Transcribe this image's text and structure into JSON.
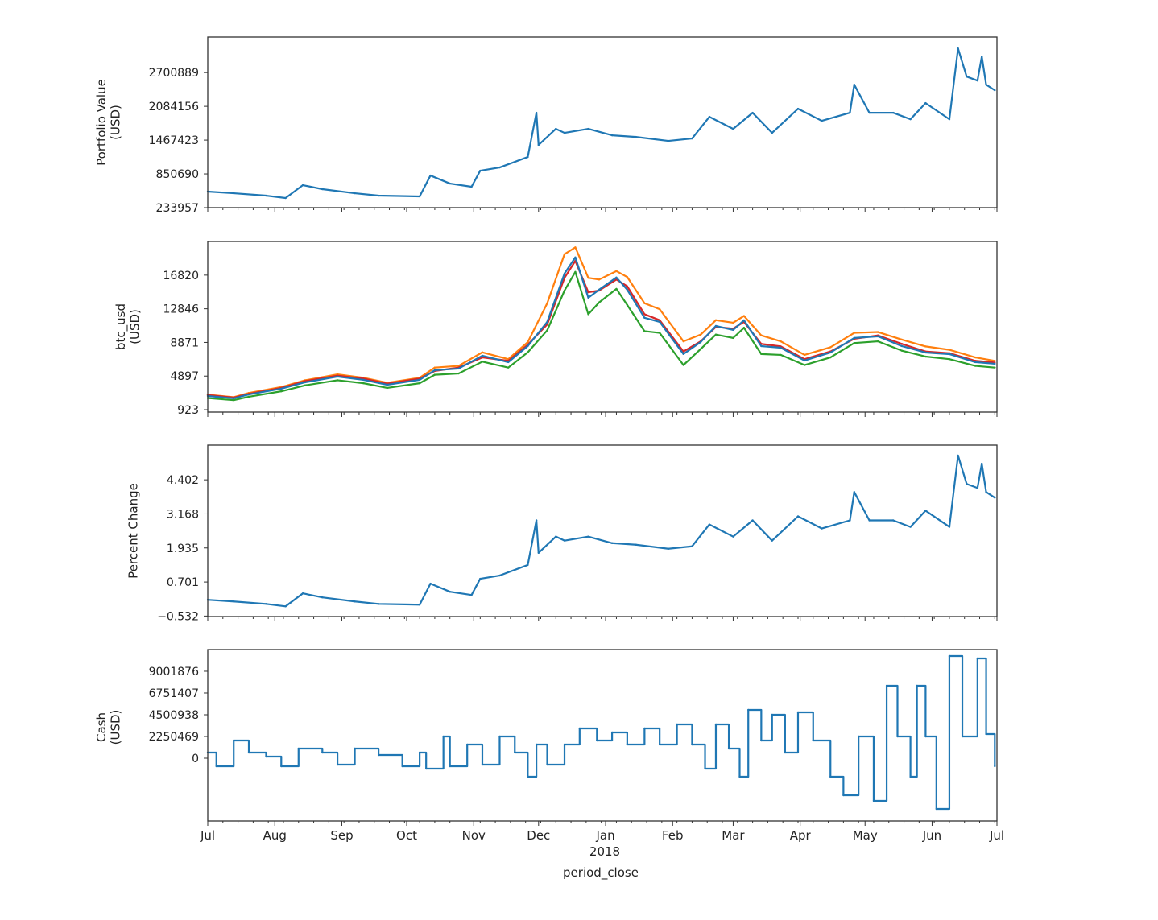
{
  "chart_data": [
    {
      "type": "line",
      "ylabel": "Portfolio Value\n(USD)",
      "ylim": [
        233957,
        3350000
      ],
      "yticks": [
        "233957",
        "850690",
        "1467423",
        "2084156",
        "2700889"
      ],
      "ytick_values": [
        233957,
        850690,
        1467423,
        2084156,
        2700889
      ],
      "color": "#1f77b4",
      "x": [
        "2017-07-01",
        "2017-07-13",
        "2017-07-28",
        "2017-08-06",
        "2017-08-14",
        "2017-08-23",
        "2017-09-07",
        "2017-09-18",
        "2017-10-07",
        "2017-10-12",
        "2017-10-21",
        "2017-10-31",
        "2017-11-04",
        "2017-11-13",
        "2017-11-26",
        "2017-11-30",
        "2017-12-01",
        "2017-12-09",
        "2017-12-13",
        "2017-12-24",
        "2018-01-04",
        "2018-01-15",
        "2018-01-30",
        "2018-02-10",
        "2018-02-18",
        "2018-03-01",
        "2018-03-10",
        "2018-03-19",
        "2018-03-31",
        "2018-04-11",
        "2018-04-24",
        "2018-04-26",
        "2018-05-03",
        "2018-05-14",
        "2018-05-22",
        "2018-05-29",
        "2018-06-09",
        "2018-06-13",
        "2018-06-17",
        "2018-06-22",
        "2018-06-24",
        "2018-06-26",
        "2018-06-30"
      ],
      "values": [
        528000,
        498000,
        454000,
        410000,
        645000,
        572000,
        498000,
        454000,
        440000,
        821000,
        674000,
        616000,
        909000,
        968000,
        1159000,
        1967000,
        1379000,
        1673000,
        1600000,
        1673000,
        1555000,
        1526000,
        1453000,
        1497000,
        1893000,
        1673000,
        1967000,
        1600000,
        2040000,
        1820000,
        1967000,
        2480000,
        1967000,
        1967000,
        1849000,
        2143000,
        1849000,
        3141000,
        2627000,
        2554000,
        2994000,
        2480000,
        2378000
      ]
    },
    {
      "type": "line",
      "ylabel": "btc_usd\n(USD)",
      "ylim": [
        640,
        20800
      ],
      "yticks": [
        "923",
        "4897",
        "8871",
        "12846",
        "16820"
      ],
      "ytick_values": [
        923,
        4897,
        8871,
        12846,
        16820
      ],
      "x": [
        "2017-07-01",
        "2017-07-13",
        "2017-07-20",
        "2017-08-04",
        "2017-08-15",
        "2017-08-30",
        "2017-09-11",
        "2017-09-22",
        "2017-10-07",
        "2017-10-14",
        "2017-10-25",
        "2017-11-05",
        "2017-11-17",
        "2017-11-26",
        "2017-12-05",
        "2017-12-13",
        "2017-12-18",
        "2017-12-24",
        "2017-12-29",
        "2018-01-06",
        "2018-01-11",
        "2018-01-19",
        "2018-01-26",
        "2018-02-06",
        "2018-02-14",
        "2018-02-21",
        "2018-03-01",
        "2018-03-06",
        "2018-03-14",
        "2018-03-23",
        "2018-04-03",
        "2018-04-15",
        "2018-04-26",
        "2018-05-07",
        "2018-05-18",
        "2018-05-29",
        "2018-06-09",
        "2018-06-21",
        "2018-06-30"
      ],
      "series": [
        {
          "color": "#ff7f0e",
          "values": [
            2700,
            2400,
            2900,
            3600,
            4400,
            5100,
            4700,
            4100,
            4700,
            5900,
            6100,
            7700,
            6900,
            8900,
            13500,
            19300,
            20100,
            16500,
            16300,
            17300,
            16600,
            13500,
            12800,
            9000,
            9800,
            11500,
            11200,
            12000,
            9700,
            9000,
            7400,
            8300,
            10000,
            10100,
            9200,
            8400,
            8000,
            7100,
            6700
          ]
        },
        {
          "color": "#d62728",
          "values": [
            2650,
            2350,
            2800,
            3500,
            4300,
            4950,
            4600,
            4000,
            4600,
            5500,
            5900,
            7100,
            6700,
            8600,
            11000,
            16500,
            18500,
            14800,
            15000,
            16300,
            15500,
            12200,
            11500,
            7800,
            9000,
            10700,
            10500,
            11300,
            8700,
            8400,
            6900,
            7800,
            9300,
            9700,
            8700,
            7800,
            7600,
            6700,
            6500
          ]
        },
        {
          "color": "#2ca02c",
          "values": [
            2300,
            2050,
            2450,
            3100,
            3800,
            4400,
            4050,
            3500,
            4050,
            5050,
            5200,
            6600,
            5900,
            7700,
            10300,
            15000,
            17200,
            12200,
            13600,
            15200,
            13300,
            10200,
            10000,
            6200,
            8100,
            9800,
            9400,
            10600,
            7500,
            7400,
            6200,
            7100,
            8800,
            9000,
            7900,
            7200,
            6900,
            6100,
            5900
          ]
        },
        {
          "color": "#1f77b4",
          "values": [
            2540,
            2260,
            2730,
            3400,
            4160,
            4830,
            4450,
            3870,
            4450,
            5590,
            5780,
            7300,
            6540,
            8440,
            11300,
            17010,
            18920,
            14160,
            15100,
            16540,
            15100,
            11780,
            11300,
            7500,
            8920,
            10820,
            10350,
            11490,
            8440,
            8250,
            6730,
            7680,
            9400,
            9590,
            8440,
            7680,
            7490,
            6540,
            6350
          ]
        }
      ]
    },
    {
      "type": "line",
      "ylabel": "Percent Change",
      "ylim": [
        -0.55,
        5.66
      ],
      "yticks": [
        "−0.532",
        "0.701",
        "1.935",
        "3.168",
        "4.402"
      ],
      "ytick_values": [
        -0.532,
        0.701,
        1.935,
        3.168,
        4.402
      ],
      "color": "#1f77b4",
      "x": [
        "2017-07-01",
        "2017-07-13",
        "2017-07-28",
        "2017-08-06",
        "2017-08-14",
        "2017-08-23",
        "2017-09-07",
        "2017-09-18",
        "2017-10-07",
        "2017-10-12",
        "2017-10-21",
        "2017-10-31",
        "2017-11-04",
        "2017-11-13",
        "2017-11-26",
        "2017-11-30",
        "2017-12-01",
        "2017-12-09",
        "2017-12-13",
        "2017-12-24",
        "2018-01-04",
        "2018-01-15",
        "2018-01-30",
        "2018-02-10",
        "2018-02-18",
        "2018-03-01",
        "2018-03-10",
        "2018-03-19",
        "2018-03-31",
        "2018-04-11",
        "2018-04-24",
        "2018-04-26",
        "2018-05-03",
        "2018-05-14",
        "2018-05-22",
        "2018-05-29",
        "2018-06-09",
        "2018-06-13",
        "2018-06-17",
        "2018-06-22",
        "2018-06-24",
        "2018-06-26",
        "2018-06-30"
      ],
      "values": [
        0.056,
        -0.004,
        -0.092,
        -0.18,
        0.29,
        0.144,
        -0.004,
        -0.092,
        -0.12,
        0.642,
        0.348,
        0.232,
        0.818,
        0.936,
        1.318,
        2.934,
        1.758,
        2.346,
        2.2,
        2.346,
        2.11,
        2.052,
        1.906,
        1.994,
        2.786,
        2.346,
        2.934,
        2.2,
        3.08,
        2.64,
        2.934,
        3.96,
        2.934,
        2.934,
        2.698,
        3.286,
        2.698,
        5.282,
        4.254,
        4.108,
        4.988,
        3.96,
        3.756
      ]
    },
    {
      "type": "line",
      "step": true,
      "ylabel": "Cash\n(USD)",
      "ylim": [
        -6500000,
        11250000
      ],
      "yticks": [
        "0",
        "2250469",
        "4500938",
        "6751407",
        "9001876"
      ],
      "ytick_values": [
        0,
        2250469,
        4500938,
        6751407,
        9001876
      ],
      "color": "#1f77b4",
      "x": [
        "2017-07-01",
        "2017-07-05",
        "2017-07-13",
        "2017-07-20",
        "2017-07-28",
        "2017-08-04",
        "2017-08-12",
        "2017-08-23",
        "2017-08-30",
        "2017-09-07",
        "2017-09-18",
        "2017-09-29",
        "2017-10-07",
        "2017-10-10",
        "2017-10-18",
        "2017-10-21",
        "2017-10-29",
        "2017-11-05",
        "2017-11-13",
        "2017-11-20",
        "2017-11-26",
        "2017-11-30",
        "2017-12-05",
        "2017-12-13",
        "2017-12-20",
        "2017-12-28",
        "2018-01-04",
        "2018-01-11",
        "2018-01-19",
        "2018-01-26",
        "2018-02-03",
        "2018-02-10",
        "2018-02-16",
        "2018-02-21",
        "2018-02-27",
        "2018-03-04",
        "2018-03-08",
        "2018-03-14",
        "2018-03-19",
        "2018-03-25",
        "2018-03-31",
        "2018-04-07",
        "2018-04-15",
        "2018-04-21",
        "2018-04-28",
        "2018-05-05",
        "2018-05-11",
        "2018-05-16",
        "2018-05-22",
        "2018-05-25",
        "2018-05-29",
        "2018-06-03",
        "2018-06-09",
        "2018-06-15",
        "2018-06-22",
        "2018-06-26",
        "2018-06-30"
      ],
      "values": [
        583000,
        -834000,
        1834000,
        583000,
        167000,
        -834000,
        1000000,
        583000,
        -667000,
        1000000,
        333000,
        -834000,
        583000,
        -1084000,
        2250000,
        -834000,
        1417000,
        -667000,
        2250000,
        583000,
        -1917000,
        1417000,
        -667000,
        1417000,
        3084000,
        1834000,
        2667000,
        1417000,
        3084000,
        1417000,
        3500000,
        1417000,
        -1084000,
        3500000,
        1000000,
        -1917000,
        5001000,
        1834000,
        4501000,
        583000,
        4751000,
        1834000,
        -1917000,
        -3834000,
        2250000,
        -4418000,
        7502000,
        2250000,
        -1917000,
        7502000,
        2250000,
        -5251000,
        10585000,
        2250000,
        10335000,
        2500000,
        -834000
      ]
    }
  ],
  "xaxis": {
    "range": [
      "2017-07-01",
      "2018-07-01"
    ],
    "ticks": [
      {
        "date": "2017-07-01",
        "label": "Jul"
      },
      {
        "date": "2017-08-01",
        "label": "Aug"
      },
      {
        "date": "2017-09-01",
        "label": "Sep"
      },
      {
        "date": "2017-10-01",
        "label": "Oct"
      },
      {
        "date": "2017-11-01",
        "label": "Nov"
      },
      {
        "date": "2017-12-01",
        "label": "Dec"
      },
      {
        "date": "2018-01-01",
        "label": "Jan"
      },
      {
        "date": "2018-02-01",
        "label": "Feb"
      },
      {
        "date": "2018-03-01",
        "label": "Mar"
      },
      {
        "date": "2018-04-01",
        "label": "Apr"
      },
      {
        "date": "2018-05-01",
        "label": "May"
      },
      {
        "date": "2018-06-01",
        "label": "Jun"
      },
      {
        "date": "2018-07-01",
        "label": "Jul"
      }
    ],
    "year_label": "2018",
    "xlabel": "period_close"
  }
}
